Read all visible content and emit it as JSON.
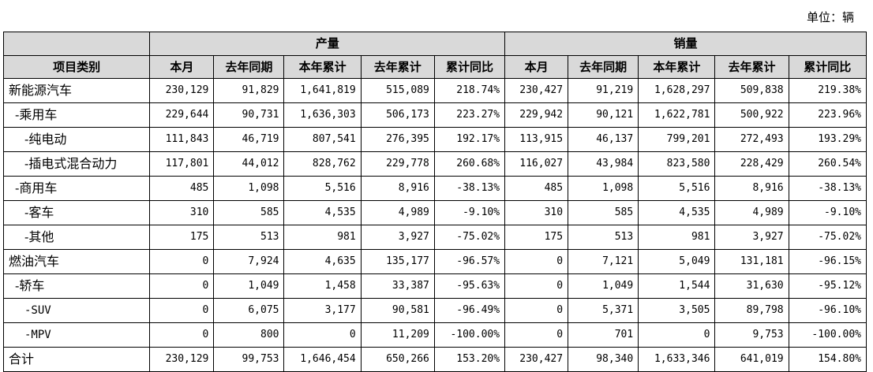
{
  "unit_label": "单位：辆",
  "header": {
    "category_label": "项目类别",
    "production_label": "产量",
    "sales_label": "销量",
    "columns": [
      "本月",
      "去年同期",
      "本年累计",
      "去年累计",
      "累计同比"
    ]
  },
  "rows": [
    {
      "label": "新能源汽车",
      "level": 0,
      "production": [
        "230,129",
        "91,829",
        "1,641,819",
        "515,089",
        "218.74%"
      ],
      "sales": [
        "230,427",
        "91,219",
        "1,628,297",
        "509,838",
        "219.38%"
      ]
    },
    {
      "label": "-乘用车",
      "level": 1,
      "production": [
        "229,644",
        "90,731",
        "1,636,303",
        "506,173",
        "223.27%"
      ],
      "sales": [
        "229,942",
        "90,121",
        "1,622,781",
        "500,922",
        "223.96%"
      ]
    },
    {
      "label": "-纯电动",
      "level": 2,
      "production": [
        "111,843",
        "46,719",
        "807,541",
        "276,395",
        "192.17%"
      ],
      "sales": [
        "113,915",
        "46,137",
        "799,201",
        "272,493",
        "193.29%"
      ]
    },
    {
      "label": "-插电式混合动力",
      "level": 2,
      "production": [
        "117,801",
        "44,012",
        "828,762",
        "229,778",
        "260.68%"
      ],
      "sales": [
        "116,027",
        "43,984",
        "823,580",
        "228,429",
        "260.54%"
      ]
    },
    {
      "label": "-商用车",
      "level": 1,
      "production": [
        "485",
        "1,098",
        "5,516",
        "8,916",
        "-38.13%"
      ],
      "sales": [
        "485",
        "1,098",
        "5,516",
        "8,916",
        "-38.13%"
      ]
    },
    {
      "label": "-客车",
      "level": 2,
      "production": [
        "310",
        "585",
        "4,535",
        "4,989",
        "-9.10%"
      ],
      "sales": [
        "310",
        "585",
        "4,535",
        "4,989",
        "-9.10%"
      ]
    },
    {
      "label": "-其他",
      "level": 2,
      "production": [
        "175",
        "513",
        "981",
        "3,927",
        "-75.02%"
      ],
      "sales": [
        "175",
        "513",
        "981",
        "3,927",
        "-75.02%"
      ]
    },
    {
      "label": "燃油汽车",
      "level": 0,
      "production": [
        "0",
        "7,924",
        "4,635",
        "135,177",
        "-96.57%"
      ],
      "sales": [
        "0",
        "7,121",
        "5,049",
        "131,181",
        "-96.15%"
      ]
    },
    {
      "label": "-轿车",
      "level": 1,
      "production": [
        "0",
        "1,049",
        "1,458",
        "33,387",
        "-95.63%"
      ],
      "sales": [
        "0",
        "1,049",
        "1,544",
        "31,630",
        "-95.12%"
      ]
    },
    {
      "label": "-SUV",
      "level": 3,
      "production": [
        "0",
        "6,075",
        "3,177",
        "90,581",
        "-96.49%"
      ],
      "sales": [
        "0",
        "5,371",
        "3,505",
        "89,798",
        "-96.10%"
      ]
    },
    {
      "label": "-MPV",
      "level": 3,
      "production": [
        "0",
        "800",
        "0",
        "11,209",
        "-100.00%"
      ],
      "sales": [
        "0",
        "701",
        "0",
        "9,753",
        "-100.00%"
      ]
    },
    {
      "label": "合计",
      "level": 0,
      "production": [
        "230,129",
        "99,753",
        "1,646,454",
        "650,266",
        "153.20%"
      ],
      "sales": [
        "230,427",
        "98,340",
        "1,633,346",
        "641,019",
        "154.80%"
      ]
    }
  ]
}
